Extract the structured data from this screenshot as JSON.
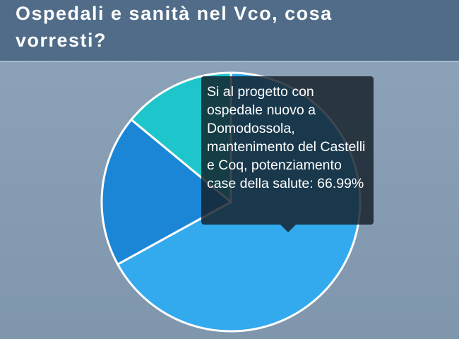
{
  "title": "Ospedali e sanità nel Vco, cosa vorresti?",
  "chart_data": {
    "type": "pie",
    "categories": [
      "Si al progetto con ospedale nuovo a Domodossola, mantenimento del Castelli e Coq, potenziamento case della salute",
      null,
      null
    ],
    "values": [
      66.99,
      19,
      14.01
    ],
    "value_labels": [
      "66.99%",
      null,
      null
    ],
    "colors": [
      "#33a9ee",
      "#1c86d6",
      "#1ec6cc"
    ]
  }
}
